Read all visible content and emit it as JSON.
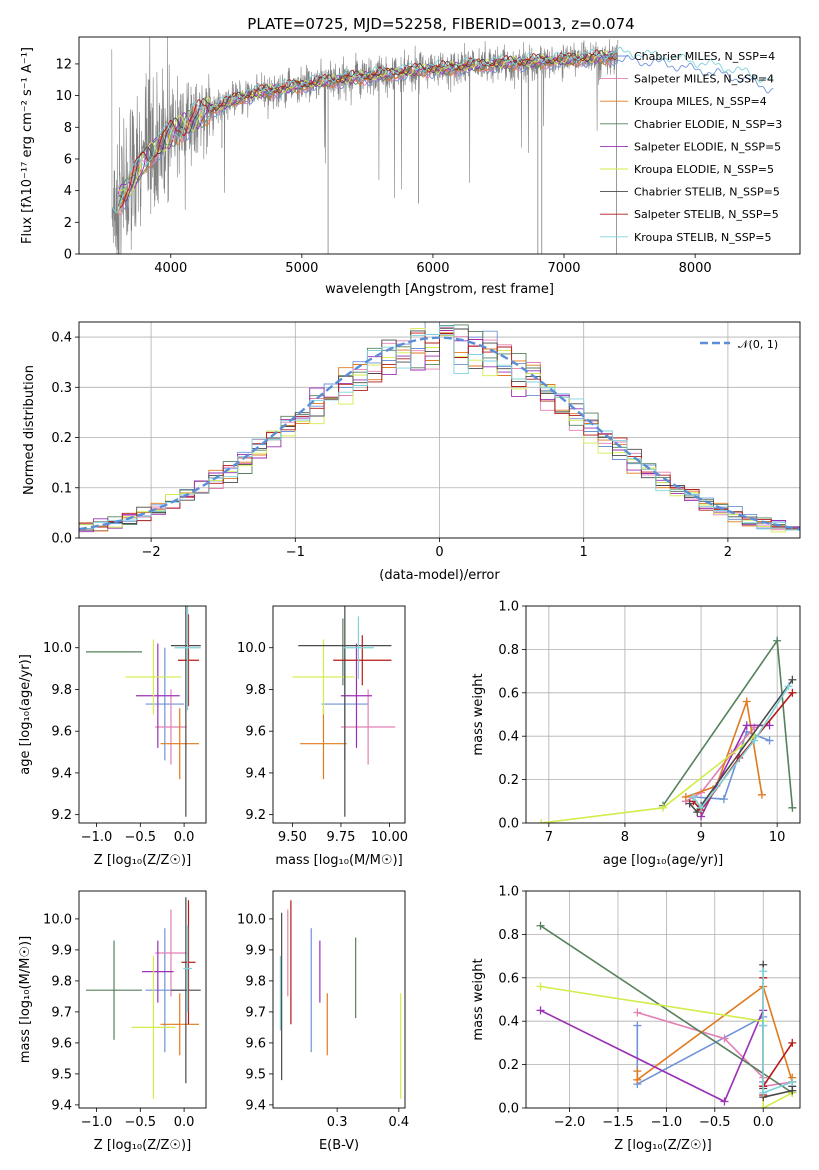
{
  "figure": {
    "title": "PLATE=0725, MJD=52258, FIBERID=0013, z=0.074"
  },
  "colors": {
    "Chabrier MILES": "#6f93d8",
    "Salpeter MILES": "#e47fb5",
    "Kroupa MILES": "#e07a1f",
    "Chabrier ELODIE": "#56815c",
    "Salpeter ELODIE": "#9b30b5",
    "Kroupa ELODIE": "#d2ec4a",
    "Chabrier STELIB": "#4a4a4a",
    "Salpeter STELIB": "#b51a1a",
    "Kroupa STELIB": "#7fd3db",
    "spectrum_data": "#808080",
    "gauss": "#5b8ed8"
  },
  "chart_data": [
    {
      "id": "spectrum",
      "type": "line",
      "title": "PLATE=0725, MJD=52258, FIBERID=0013, z=0.074",
      "xlabel": "wavelength [Angstrom, rest frame]",
      "ylabel": "Flux [fλ10⁻¹⁷ erg cm⁻² s⁻¹ A⁻¹]",
      "xlim": [
        3300,
        8800
      ],
      "ylim": [
        0,
        13.7
      ],
      "xticks": [
        4000,
        5000,
        6000,
        7000,
        8000
      ],
      "yticks": [
        0,
        2,
        4,
        6,
        8,
        10,
        12
      ],
      "grid": false,
      "legend_position": "top-right",
      "legend": [
        "Chabrier MILES, N_SSP=4",
        "Salpeter MILES, N_SSP=4",
        "Kroupa MILES, N_SSP=4",
        "Chabrier ELODIE, N_SSP=3",
        "Salpeter ELODIE, N_SSP=5",
        "Kroupa ELODIE, N_SSP=5",
        "Chabrier STELIB, N_SSP=5",
        "Salpeter STELIB, N_SSP=5",
        "Kroupa STELIB, N_SSP=5"
      ],
      "continuum": {
        "x": [
          3550,
          3600,
          3650,
          3700,
          3750,
          3800,
          3900,
          4000,
          4100,
          4200,
          4300,
          4400,
          4500,
          4700,
          4900,
          5100,
          5300,
          5500,
          5700,
          5900,
          6100,
          6300,
          6500,
          6700,
          6900,
          7100,
          7300,
          7400,
          7600,
          7800,
          8000,
          8200,
          8400,
          8500,
          8600
        ],
        "y": [
          2.8,
          3.3,
          3.9,
          4.5,
          5.3,
          5.9,
          6.8,
          7.5,
          8.1,
          8.7,
          9.1,
          9.4,
          9.8,
          10.2,
          10.5,
          10.8,
          11.0,
          11.2,
          11.4,
          11.6,
          11.7,
          11.9,
          12.0,
          12.1,
          12.2,
          12.3,
          12.4,
          12.5,
          12.4,
          12.2,
          11.9,
          11.6,
          11.2,
          10.9,
          10.6
        ]
      }
    },
    {
      "id": "residuals",
      "type": "step",
      "xlabel": "(data-model)/error",
      "ylabel": "Normed distribution",
      "xlim": [
        -2.5,
        2.5
      ],
      "ylim": [
        0,
        0.43
      ],
      "xticks": [
        -2,
        -1,
        0,
        1,
        2
      ],
      "yticks": [
        0.0,
        0.1,
        0.2,
        0.3,
        0.4
      ],
      "grid": true,
      "legend_position": "top-right",
      "legend": [
        "𝒩(0, 1)"
      ],
      "bin_width": 0.1
    },
    {
      "id": "age_vs_Z",
      "type": "errorbar",
      "xlabel": "Z [log₁₀(Z/Z☉)]",
      "ylabel": "age  [log₁₀(age/yr)]",
      "xlim": [
        -1.2,
        0.25
      ],
      "ylim": [
        9.16,
        10.2
      ],
      "xticks": [
        -1.0,
        -0.5,
        0.0
      ],
      "yticks": [
        9.2,
        9.4,
        9.6,
        9.8,
        10.0
      ],
      "points": [
        {
          "x": -0.22,
          "y": 9.73,
          "xerr": 0.22,
          "yerr": 0.27,
          "color": "Chabrier MILES"
        },
        {
          "x": -0.15,
          "y": 9.62,
          "xerr": 0.18,
          "yerr": 0.18,
          "color": "Salpeter MILES"
        },
        {
          "x": -0.05,
          "y": 9.54,
          "xerr": 0.22,
          "yerr": 0.17,
          "color": "Kroupa MILES"
        },
        {
          "x": -0.8,
          "y": 9.98,
          "xerr": 0.32,
          "yerr": 0.0,
          "color": "Chabrier ELODIE"
        },
        {
          "x": -0.3,
          "y": 9.77,
          "xerr": 0.25,
          "yerr": 0.25,
          "color": "Salpeter ELODIE"
        },
        {
          "x": -0.35,
          "y": 9.86,
          "xerr": 0.32,
          "yerr": 0.18,
          "color": "Kroupa ELODIE"
        },
        {
          "x": 0.02,
          "y": 10.01,
          "xerr": 0.17,
          "yerr": 0.82,
          "color": "Chabrier STELIB"
        },
        {
          "x": 0.05,
          "y": 9.94,
          "xerr": 0.12,
          "yerr": 0.22,
          "color": "Salpeter STELIB"
        },
        {
          "x": 0.04,
          "y": 10.0,
          "xerr": 0.15,
          "yerr": 0.3,
          "color": "Kroupa STELIB"
        }
      ]
    },
    {
      "id": "age_vs_mass",
      "type": "errorbar",
      "xlabel": "mass [log₁₀(M/M☉)]",
      "ylabel": "",
      "xlim": [
        9.4,
        10.08
      ],
      "ylim": [
        9.16,
        10.2
      ],
      "xticks": [
        9.5,
        9.75,
        10.0
      ],
      "yticks": [
        9.2,
        9.4,
        9.6,
        9.8,
        10.0
      ],
      "points": [
        {
          "x": 9.77,
          "y": 9.73,
          "xerr": 0.12,
          "yerr": 0.27,
          "color": "Chabrier MILES"
        },
        {
          "x": 9.89,
          "y": 9.62,
          "xerr": 0.14,
          "yerr": 0.18,
          "color": "Salpeter MILES"
        },
        {
          "x": 9.66,
          "y": 9.54,
          "xerr": 0.12,
          "yerr": 0.17,
          "color": "Kroupa MILES"
        },
        {
          "x": 9.76,
          "y": 9.98,
          "xerr": 0.0,
          "yerr": 0.16,
          "color": "Chabrier ELODIE"
        },
        {
          "x": 9.83,
          "y": 9.77,
          "xerr": 0.08,
          "yerr": 0.25,
          "color": "Salpeter ELODIE"
        },
        {
          "x": 9.66,
          "y": 9.86,
          "xerr": 0.16,
          "yerr": 0.18,
          "color": "Kroupa ELODIE"
        },
        {
          "x": 9.77,
          "y": 10.01,
          "xerr": 0.24,
          "yerr": 0.82,
          "color": "Chabrier STELIB"
        },
        {
          "x": 9.86,
          "y": 9.94,
          "xerr": 0.15,
          "yerr": 0.12,
          "color": "Salpeter STELIB"
        },
        {
          "x": 9.84,
          "y": 10.0,
          "xerr": 0.08,
          "yerr": 0.15,
          "color": "Kroupa STELIB"
        }
      ]
    },
    {
      "id": "mw_vs_age",
      "type": "line",
      "xlabel": "age  [log₁₀(age/yr)]",
      "ylabel": "mass weight",
      "xlim": [
        6.7,
        10.3
      ],
      "ylim": [
        0,
        1.0
      ],
      "xticks": [
        7,
        8,
        9,
        10
      ],
      "yticks": [
        0.0,
        0.2,
        0.4,
        0.6,
        0.8,
        1.0
      ],
      "grid": true,
      "series": [
        {
          "color": "Chabrier MILES",
          "x": [
            8.9,
            9.3,
            9.6,
            9.9
          ],
          "y": [
            0.12,
            0.11,
            0.42,
            0.38
          ]
        },
        {
          "color": "Salpeter MILES",
          "x": [
            8.8,
            9.0,
            9.4,
            9.7
          ],
          "y": [
            0.1,
            0.14,
            0.32,
            0.44
          ]
        },
        {
          "color": "Kroupa MILES",
          "x": [
            8.8,
            9.2,
            9.6,
            9.8
          ],
          "y": [
            0.12,
            0.17,
            0.56,
            0.13
          ]
        },
        {
          "color": "Chabrier ELODIE",
          "x": [
            8.5,
            10.0,
            10.2
          ],
          "y": [
            0.08,
            0.84,
            0.07
          ]
        },
        {
          "color": "Salpeter ELODIE",
          "x": [
            9.0,
            9.6,
            9.9
          ],
          "y": [
            0.03,
            0.45,
            0.45
          ]
        },
        {
          "color": "Kroupa ELODIE",
          "x": [
            6.9,
            8.5,
            9.7
          ],
          "y": [
            0.0,
            0.07,
            0.4
          ]
        },
        {
          "color": "Chabrier STELIB",
          "x": [
            8.85,
            8.95,
            9.0,
            10.2
          ],
          "y": [
            0.09,
            0.05,
            0.08,
            0.66
          ]
        },
        {
          "color": "Salpeter STELIB",
          "x": [
            8.9,
            9.0,
            9.5,
            10.2
          ],
          "y": [
            0.1,
            0.06,
            0.3,
            0.6
          ]
        },
        {
          "color": "Kroupa STELIB",
          "x": [
            8.9,
            9.0,
            9.7,
            10.15
          ],
          "y": [
            0.12,
            0.07,
            0.38,
            0.63
          ]
        }
      ]
    },
    {
      "id": "mass_vs_Z",
      "type": "errorbar",
      "xlabel": "Z [log₁₀(Z/Z☉)]",
      "ylabel": "mass [log₁₀(M/M☉)]",
      "xlim": [
        -1.2,
        0.25
      ],
      "ylim": [
        9.39,
        10.09
      ],
      "xticks": [
        -1.0,
        -0.5,
        0.0
      ],
      "yticks": [
        9.4,
        9.5,
        9.6,
        9.7,
        9.8,
        9.9,
        10.0
      ],
      "points": [
        {
          "x": -0.22,
          "y": 9.77,
          "xerr": 0.22,
          "yerr": 0.2,
          "color": "Chabrier MILES"
        },
        {
          "x": -0.15,
          "y": 9.89,
          "xerr": 0.18,
          "yerr": 0.14,
          "color": "Salpeter MILES"
        },
        {
          "x": -0.05,
          "y": 9.66,
          "xerr": 0.22,
          "yerr": 0.1,
          "color": "Kroupa MILES"
        },
        {
          "x": -0.8,
          "y": 9.77,
          "xerr": 0.32,
          "yerr": 0.16,
          "color": "Chabrier ELODIE"
        },
        {
          "x": -0.3,
          "y": 9.83,
          "xerr": 0.18,
          "yerr": 0.1,
          "color": "Salpeter ELODIE"
        },
        {
          "x": -0.35,
          "y": 9.65,
          "xerr": 0.25,
          "yerr": 0.23,
          "color": "Kroupa ELODIE"
        },
        {
          "x": 0.02,
          "y": 9.77,
          "xerr": 0.17,
          "yerr": 0.3,
          "color": "Chabrier STELIB"
        },
        {
          "x": 0.05,
          "y": 9.86,
          "xerr": 0.08,
          "yerr": 0.2,
          "color": "Salpeter STELIB"
        },
        {
          "x": 0.04,
          "y": 9.84,
          "xerr": 0.05,
          "yerr": 0.14,
          "color": "Kroupa STELIB"
        }
      ]
    },
    {
      "id": "mass_vs_ebv",
      "type": "errorbar",
      "xlabel": "E(B-V)",
      "ylabel": "",
      "xlim": [
        0.196,
        0.41
      ],
      "ylim": [
        9.39,
        10.09
      ],
      "xticks": [
        0.3,
        0.4
      ],
      "yticks": [
        9.4,
        9.5,
        9.6,
        9.7,
        9.8,
        9.9,
        10.0
      ],
      "points": [
        {
          "x": 0.258,
          "y": 9.77,
          "xerr": 0.0,
          "yerr": 0.2,
          "color": "Chabrier MILES"
        },
        {
          "x": 0.22,
          "y": 9.89,
          "xerr": 0.0,
          "yerr": 0.14,
          "color": "Salpeter MILES"
        },
        {
          "x": 0.284,
          "y": 9.66,
          "xerr": 0.0,
          "yerr": 0.1,
          "color": "Kroupa MILES"
        },
        {
          "x": 0.33,
          "y": 9.81,
          "xerr": 0.0,
          "yerr": 0.13,
          "color": "Chabrier ELODIE"
        },
        {
          "x": 0.272,
          "y": 9.83,
          "xerr": 0.0,
          "yerr": 0.1,
          "color": "Salpeter ELODIE"
        },
        {
          "x": 0.403,
          "y": 9.59,
          "xerr": 0.0,
          "yerr": 0.17,
          "color": "Kroupa ELODIE"
        },
        {
          "x": 0.21,
          "y": 9.75,
          "xerr": 0.0,
          "yerr": 0.27,
          "color": "Chabrier STELIB"
        },
        {
          "x": 0.225,
          "y": 9.86,
          "xerr": 0.0,
          "yerr": 0.2,
          "color": "Salpeter STELIB"
        },
        {
          "x": 0.208,
          "y": 9.76,
          "xerr": 0.0,
          "yerr": 0.12,
          "color": "Kroupa STELIB"
        }
      ]
    },
    {
      "id": "mw_vs_Z",
      "type": "line",
      "xlabel": "Z [log₁₀(Z/Z☉)]",
      "ylabel": "mass weight",
      "xlim": [
        -2.45,
        0.38
      ],
      "ylim": [
        0,
        1.0
      ],
      "xticks": [
        -2.0,
        -1.5,
        -1.0,
        -0.5,
        0.0
      ],
      "yticks": [
        0.0,
        0.2,
        0.4,
        0.6,
        0.8,
        1.0
      ],
      "grid": true,
      "series": [
        {
          "color": "Chabrier MILES",
          "x": [
            -1.3,
            -1.3,
            0.0,
            0.0,
            0.0
          ],
          "y": [
            0.38,
            0.11,
            0.42,
            0.38,
            0.12
          ]
        },
        {
          "color": "Salpeter MILES",
          "x": [
            -1.3,
            -0.4,
            0.0,
            0.0,
            0.3
          ],
          "y": [
            0.44,
            0.32,
            0.14,
            0.1,
            0.12
          ]
        },
        {
          "color": "Kroupa MILES",
          "x": [
            -1.3,
            -1.3,
            0.0,
            0.3,
            0.3
          ],
          "y": [
            0.17,
            0.13,
            0.56,
            0.12,
            0.14
          ]
        },
        {
          "color": "Chabrier ELODIE",
          "x": [
            -2.3,
            0.3,
            0.3
          ],
          "y": [
            0.84,
            0.07,
            0.08
          ]
        },
        {
          "color": "Salpeter ELODIE",
          "x": [
            -2.3,
            -0.4,
            0.0
          ],
          "y": [
            0.45,
            0.03,
            0.45
          ]
        },
        {
          "color": "Kroupa ELODIE",
          "x": [
            -2.3,
            0.0,
            0.0,
            0.3
          ],
          "y": [
            0.56,
            0.4,
            0.0,
            0.07
          ]
        },
        {
          "color": "Chabrier STELIB",
          "x": [
            0.0,
            0.0,
            0.0,
            0.3,
            0.3
          ],
          "y": [
            0.66,
            0.09,
            0.05,
            0.08,
            0.1
          ]
        },
        {
          "color": "Salpeter STELIB",
          "x": [
            0.0,
            0.0,
            0.0,
            0.3
          ],
          "y": [
            0.6,
            0.06,
            0.1,
            0.3
          ]
        },
        {
          "color": "Kroupa STELIB",
          "x": [
            0.0,
            0.0,
            0.0,
            0.3
          ],
          "y": [
            0.63,
            0.38,
            0.07,
            0.12
          ]
        }
      ]
    }
  ]
}
